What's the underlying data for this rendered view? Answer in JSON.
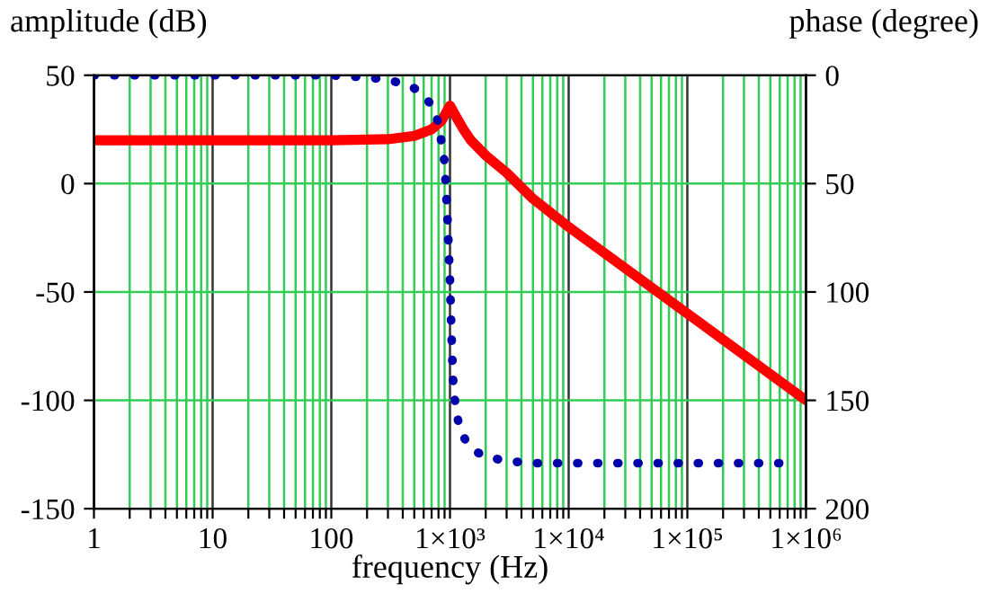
{
  "chart_data": {
    "type": "line",
    "xlabel": "frequency (Hz)",
    "ylabel": "amplitude (dB)",
    "y2label": "phase (degree)",
    "log": "x",
    "xlim": [
      1,
      1000000
    ],
    "xticks": [
      1,
      {
        "value": 2,
        "label": null
      },
      {
        "value": 3,
        "label": null
      },
      {
        "value": 4,
        "label": null
      },
      {
        "value": 5,
        "label": null
      },
      {
        "value": 6,
        "label": null
      },
      {
        "value": 7,
        "label": null
      },
      {
        "value": 8,
        "label": null
      },
      {
        "value": 9,
        "label": null
      },
      10,
      {
        "value": 20,
        "label": null
      },
      {
        "value": 30,
        "label": null
      },
      {
        "value": 40,
        "label": null
      },
      {
        "value": 50,
        "label": null
      },
      {
        "value": 60,
        "label": null
      },
      {
        "value": 70,
        "label": null
      },
      {
        "value": 80,
        "label": null
      },
      {
        "value": 90,
        "label": null
      },
      100,
      {
        "value": 200,
        "label": null
      },
      {
        "value": 300,
        "label": null
      },
      {
        "value": 400,
        "label": null
      },
      {
        "value": 500,
        "label": null
      },
      {
        "value": 600,
        "label": null
      },
      {
        "value": 700,
        "label": null
      },
      {
        "value": 800,
        "label": null
      },
      {
        "value": 900,
        "label": null
      },
      {
        "value": 1000,
        "label": "1×10³"
      },
      {
        "value": 2000,
        "label": null
      },
      {
        "value": 3000,
        "label": null
      },
      {
        "value": 4000,
        "label": null
      },
      {
        "value": 5000,
        "label": null
      },
      {
        "value": 6000,
        "label": null
      },
      {
        "value": 7000,
        "label": null
      },
      {
        "value": 8000,
        "label": null
      },
      {
        "value": 9000,
        "label": null
      },
      {
        "value": 10000,
        "label": "1×10⁴"
      },
      {
        "value": 20000,
        "label": null
      },
      {
        "value": 30000,
        "label": null
      },
      {
        "value": 40000,
        "label": null
      },
      {
        "value": 50000,
        "label": null
      },
      {
        "value": 60000,
        "label": null
      },
      {
        "value": 70000,
        "label": null
      },
      {
        "value": 80000,
        "label": null
      },
      {
        "value": 90000,
        "label": null
      },
      {
        "value": 100000,
        "label": "1×10⁵"
      },
      {
        "value": 200000,
        "label": null
      },
      {
        "value": 300000,
        "label": null
      },
      {
        "value": 400000,
        "label": null
      },
      {
        "value": 500000,
        "label": null
      },
      {
        "value": 600000,
        "label": null
      },
      {
        "value": 700000,
        "label": null
      },
      {
        "value": 800000,
        "label": null
      },
      {
        "value": 900000,
        "label": null
      },
      {
        "value": 1000000,
        "label": "1×10⁶"
      }
    ],
    "ylim": [
      -150,
      50
    ],
    "yticks": [
      -150,
      -100,
      -50,
      0,
      50
    ],
    "y2lim": [
      200,
      0
    ],
    "y2ticks": [
      0,
      50,
      100,
      150,
      200
    ],
    "grid": true,
    "series": [
      {
        "color": "#ff0000",
        "line_style": "solid",
        "marker": "none",
        "x": [
          1,
          10,
          100,
          300,
          500,
          700,
          850,
          1000,
          1150,
          1300,
          1500,
          2000,
          3000,
          5000,
          10000,
          100000,
          1000000
        ],
        "values": [
          20,
          20,
          20,
          20.5,
          22,
          25,
          29,
          36,
          30,
          25,
          20,
          13,
          5,
          -7,
          -20,
          -60,
          -100
        ]
      },
      {
        "color": "#0000aa",
        "axis": "y2",
        "line_style": "dotted",
        "marker": "none",
        "x": [
          1,
          10,
          100,
          200,
          300,
          400,
          500,
          600,
          700,
          800,
          900,
          950,
          1000,
          1030,
          1060,
          1100,
          1200,
          1400,
          1700,
          2000,
          3000,
          5000,
          10000,
          100000,
          700000
        ],
        "values": [
          0,
          0,
          0,
          1,
          2,
          4,
          6,
          9,
          14,
          22,
          40,
          65,
          95,
          120,
          140,
          150,
          163,
          170,
          174,
          176,
          178,
          179,
          179,
          179,
          179
        ]
      }
    ]
  }
}
